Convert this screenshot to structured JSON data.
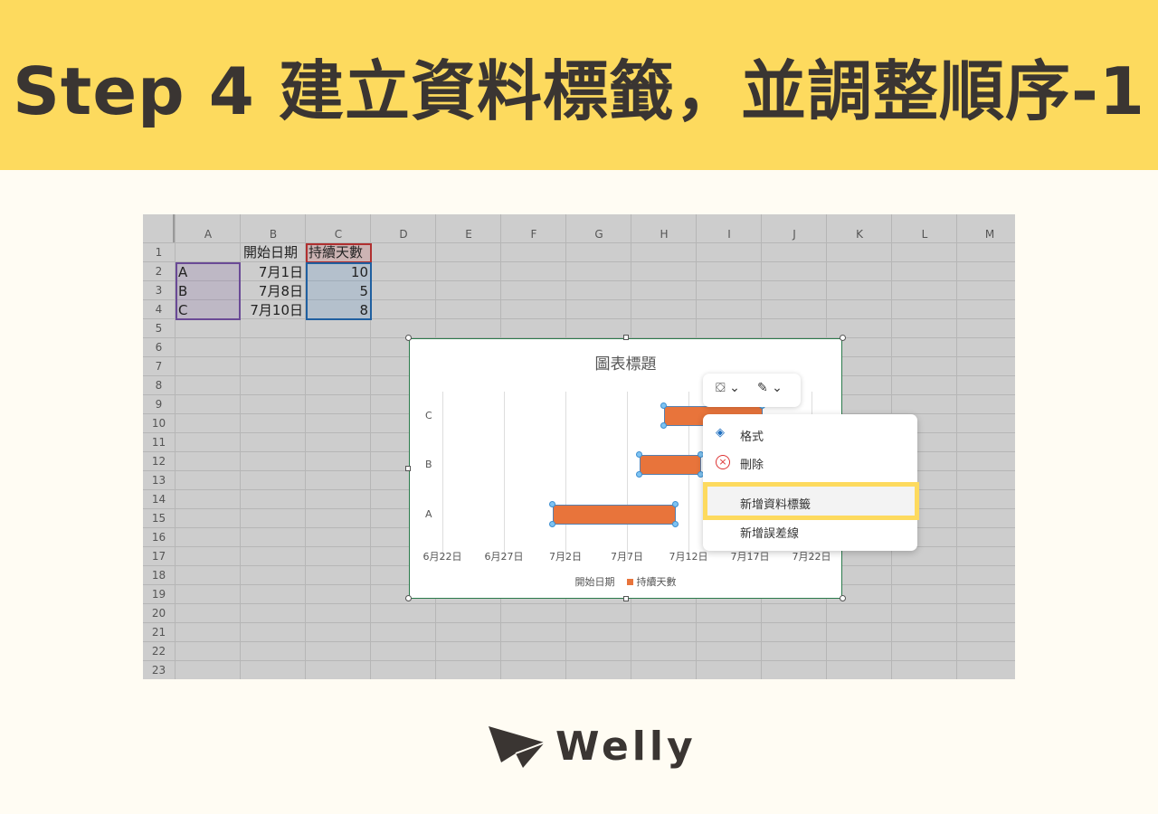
{
  "banner": {
    "title": "Step 4  建立資料標籤，並調整順序-1"
  },
  "sheet": {
    "columns": [
      "A",
      "B",
      "C",
      "D",
      "E",
      "F",
      "G",
      "H",
      "I",
      "J",
      "K",
      "L",
      "M"
    ],
    "rows": 23,
    "header": {
      "b1": "開始日期",
      "c1": "持續天數"
    },
    "data": [
      {
        "a": "A",
        "b": "7月1日",
        "c": "10"
      },
      {
        "a": "B",
        "b": "7月8日",
        "c": "5"
      },
      {
        "a": "C",
        "b": "7月10日",
        "c": "8"
      }
    ],
    "colors": {
      "label_range": "#6a4a96",
      "header_range": "#b03030",
      "value_range": "#1f5fa0"
    }
  },
  "chart_data": {
    "type": "bar",
    "orientation": "horizontal",
    "stacked": true,
    "title": "圖表標題",
    "categories": [
      "A",
      "B",
      "C"
    ],
    "series": [
      {
        "name": "開始日期",
        "values": [
          "7月1日",
          "7月8日",
          "7月10日"
        ],
        "hidden": true
      },
      {
        "name": "持續天數",
        "values": [
          10,
          5,
          8
        ],
        "color": "#e8743b"
      }
    ],
    "x_ticks": [
      "6月22日",
      "6月27日",
      "7月2日",
      "7月7日",
      "7月12日",
      "7月17日",
      "7月22日"
    ],
    "xlim": [
      "6月22日",
      "7月22日"
    ],
    "grid": true,
    "legend": "bottom"
  },
  "toolbar": {
    "fill_icon": "paint-bucket-icon",
    "outline_icon": "pen-outline-icon"
  },
  "menu": {
    "items": [
      {
        "label": "格式",
        "icon": "format-fill-icon"
      },
      {
        "label": "刪除",
        "icon": "delete-circle-x-icon"
      },
      {
        "label": "新增資料標籤",
        "highlighted": true
      },
      {
        "label": "新增誤差線"
      }
    ],
    "highlight_color": "#fdda5e"
  },
  "logo": {
    "text": "Welly"
  }
}
